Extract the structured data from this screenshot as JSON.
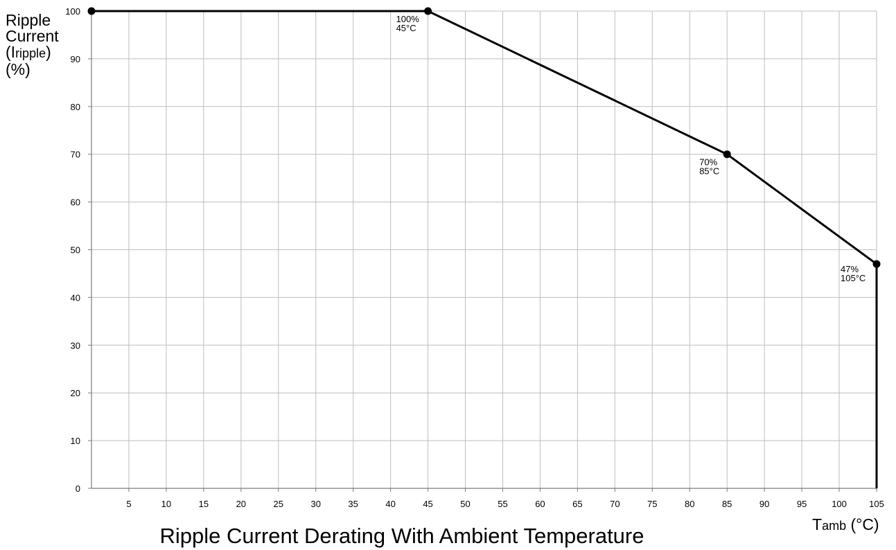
{
  "chart_data": {
    "type": "line",
    "title": "Ripple Current Derating With Ambient Temperature",
    "ylabel": {
      "line1": "Ripple",
      "line2": "Current",
      "line3_open": "(I",
      "line3_sub": "ripple",
      "line3_close": ")",
      "line4": "(%)"
    },
    "xlabel": {
      "main": "T",
      "sub": "amb",
      "unit": " (°C)"
    },
    "xlim": [
      0,
      105
    ],
    "ylim": [
      0,
      100
    ],
    "grid": true,
    "x_ticks": [
      5,
      10,
      15,
      20,
      25,
      30,
      35,
      40,
      45,
      50,
      55,
      60,
      65,
      70,
      75,
      80,
      85,
      90,
      95,
      100,
      105
    ],
    "y_ticks": [
      0,
      10,
      20,
      30,
      40,
      50,
      60,
      70,
      80,
      90,
      100
    ],
    "series": [
      {
        "x": [
          0,
          45,
          85,
          105,
          105
        ],
        "y": [
          100,
          100,
          70,
          47,
          0
        ]
      }
    ],
    "markers": [
      {
        "x": 0,
        "y": 100
      },
      {
        "x": 45,
        "y": 100
      },
      {
        "x": 85,
        "y": 70
      },
      {
        "x": 105,
        "y": 47
      }
    ],
    "annotations": [
      {
        "x": 45,
        "y": 100,
        "line1": "100%",
        "line2": "45°C"
      },
      {
        "x": 85,
        "y": 70,
        "line1": "70%",
        "line2": "85°C"
      },
      {
        "x": 105,
        "y": 47,
        "line1": "47%",
        "line2": "105°C"
      }
    ]
  }
}
